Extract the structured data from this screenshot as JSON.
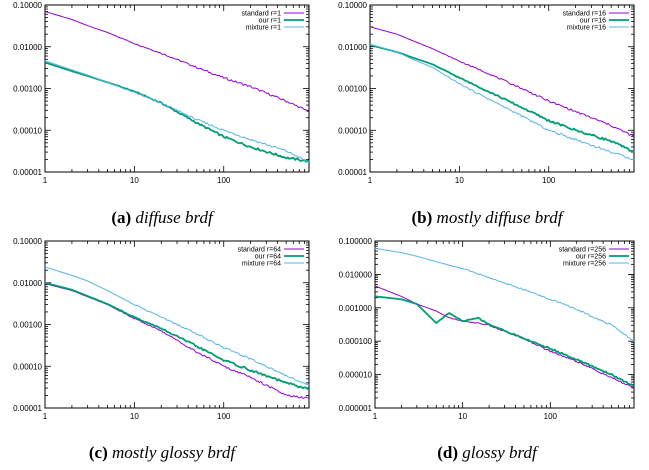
{
  "chart_data": [
    {
      "type": "line",
      "caption_label": "(a)",
      "caption_text": "diffuse brdf",
      "xscale": "log",
      "yscale": "log",
      "xlim": [
        1,
        900
      ],
      "ylim": [
        1e-05,
        0.1
      ],
      "xticks": [
        "1",
        "10",
        "100"
      ],
      "yticks": [
        "0.10000",
        "0.01000",
        "0.00100",
        "0.00010",
        "0.00001"
      ],
      "legend_position": "top-right",
      "grid": false,
      "series": [
        {
          "name": "standard r=1",
          "color": "#9400d3",
          "x": [
            1,
            2,
            3,
            5,
            10,
            20,
            50,
            100,
            200,
            500,
            900
          ],
          "y": [
            0.07,
            0.045,
            0.032,
            0.022,
            0.012,
            0.007,
            0.0032,
            0.0018,
            0.0011,
            0.0005,
            0.00028
          ]
        },
        {
          "name": "our r=1",
          "color": "#009e73",
          "x": [
            1,
            2,
            3,
            5,
            10,
            20,
            50,
            100,
            200,
            500,
            900
          ],
          "y": [
            0.0042,
            0.0026,
            0.002,
            0.0014,
            0.00085,
            0.00045,
            0.00015,
            7e-05,
            4e-05,
            2.2e-05,
            1.8e-05
          ]
        },
        {
          "name": "mixture r=1",
          "color": "#56b4e9",
          "x": [
            1,
            2,
            3,
            5,
            10,
            20,
            50,
            100,
            200,
            500,
            900
          ],
          "y": [
            0.0046,
            0.0028,
            0.0021,
            0.0014,
            0.0008,
            0.00045,
            0.00018,
            0.0001,
            6e-05,
            3.2e-05,
            1.7e-05
          ]
        }
      ]
    },
    {
      "type": "line",
      "caption_label": "(b)",
      "caption_text": "mostly diffuse brdf",
      "xscale": "log",
      "yscale": "log",
      "xlim": [
        1,
        900
      ],
      "ylim": [
        1e-05,
        0.1
      ],
      "xticks": [
        "1",
        "10",
        "100"
      ],
      "yticks": [
        "0.10000",
        "0.01000",
        "0.00100",
        "0.00010",
        "0.00001"
      ],
      "legend_position": "top-right",
      "grid": false,
      "series": [
        {
          "name": "standard r=16",
          "color": "#9400d3",
          "x": [
            1,
            2,
            3,
            5,
            10,
            20,
            50,
            100,
            200,
            500,
            900
          ],
          "y": [
            0.03,
            0.02,
            0.014,
            0.009,
            0.0045,
            0.0024,
            0.001,
            0.0005,
            0.00028,
            0.00013,
            7e-05
          ]
        },
        {
          "name": "our r=16",
          "color": "#009e73",
          "x": [
            1,
            2,
            3,
            5,
            10,
            20,
            50,
            100,
            200,
            500,
            900
          ],
          "y": [
            0.011,
            0.0075,
            0.0055,
            0.0038,
            0.0018,
            0.0009,
            0.00035,
            0.00017,
            0.0001,
            5.5e-05,
            3e-05
          ]
        },
        {
          "name": "mixture r=16",
          "color": "#56b4e9",
          "x": [
            1,
            2,
            3,
            5,
            10,
            20,
            50,
            100,
            200,
            500,
            900
          ],
          "y": [
            0.0115,
            0.0075,
            0.005,
            0.0032,
            0.0013,
            0.0006,
            0.00022,
            0.0001,
            6e-05,
            3e-05,
            2e-05
          ]
        }
      ]
    },
    {
      "type": "line",
      "caption_label": "(c)",
      "caption_text": "mostly glossy brdf",
      "xscale": "log",
      "yscale": "log",
      "xlim": [
        1,
        900
      ],
      "ylim": [
        1e-05,
        0.1
      ],
      "xticks": [
        "1",
        "10",
        "100"
      ],
      "yticks": [
        "0.10000",
        "0.01000",
        "0.00100",
        "0.00010",
        "0.00001"
      ],
      "legend_position": "top-right",
      "grid": false,
      "series": [
        {
          "name": "standard r=64",
          "color": "#9400d3",
          "x": [
            1,
            2,
            3,
            5,
            10,
            20,
            50,
            100,
            200,
            500,
            900
          ],
          "y": [
            0.0095,
            0.0065,
            0.0046,
            0.003,
            0.0014,
            0.0007,
            0.00022,
            0.0001,
            5.5e-05,
            2e-05,
            1.7e-05
          ]
        },
        {
          "name": "our r=64",
          "color": "#009e73",
          "x": [
            1,
            2,
            3,
            5,
            10,
            20,
            50,
            100,
            200,
            500,
            900
          ],
          "y": [
            0.01,
            0.0068,
            0.0048,
            0.0031,
            0.0015,
            0.0008,
            0.0003,
            0.00014,
            8e-05,
            4e-05,
            2.8e-05
          ]
        },
        {
          "name": "mixture r=64",
          "color": "#56b4e9",
          "x": [
            1,
            2,
            3,
            5,
            10,
            20,
            50,
            100,
            200,
            500,
            900
          ],
          "y": [
            0.024,
            0.015,
            0.011,
            0.0065,
            0.003,
            0.0015,
            0.0006,
            0.00028,
            0.00015,
            6e-05,
            3.5e-05
          ]
        }
      ]
    },
    {
      "type": "line",
      "caption_label": "(d)",
      "caption_text": "glossy brdf",
      "xscale": "log",
      "yscale": "log",
      "xlim": [
        1,
        900
      ],
      "ylim": [
        1e-06,
        0.1
      ],
      "xticks": [
        "1",
        "10",
        "100"
      ],
      "yticks": [
        "0.100000",
        "0.010000",
        "0.001000",
        "0.000100",
        "0.000010",
        "0.000001"
      ],
      "legend_position": "top-right",
      "grid": false,
      "series": [
        {
          "name": "standard r=256",
          "color": "#9400d3",
          "x": [
            1,
            2,
            3,
            5,
            7,
            10,
            15,
            20,
            50,
            100,
            200,
            500,
            900
          ],
          "y": [
            0.0045,
            0.0022,
            0.0013,
            0.0008,
            0.0005,
            0.0004,
            0.00035,
            0.0003,
            0.00012,
            5e-05,
            2.5e-05,
            8e-06,
            4e-06
          ]
        },
        {
          "name": "our r=256",
          "color": "#009e73",
          "x": [
            1,
            2,
            3,
            5,
            7,
            10,
            15,
            20,
            50,
            100,
            200,
            500,
            900
          ],
          "y": [
            0.0022,
            0.0018,
            0.0013,
            0.00035,
            0.0007,
            0.0004,
            0.0005,
            0.00032,
            0.00012,
            6e-05,
            2.8e-05,
            1e-05,
            4.5e-06
          ]
        },
        {
          "name": "mixture r=256",
          "color": "#56b4e9",
          "x": [
            1,
            2,
            3,
            5,
            10,
            20,
            50,
            100,
            200,
            500,
            900
          ],
          "y": [
            0.06,
            0.045,
            0.035,
            0.024,
            0.015,
            0.008,
            0.0035,
            0.0018,
            0.0009,
            0.0003,
            0.0001
          ]
        }
      ]
    }
  ]
}
